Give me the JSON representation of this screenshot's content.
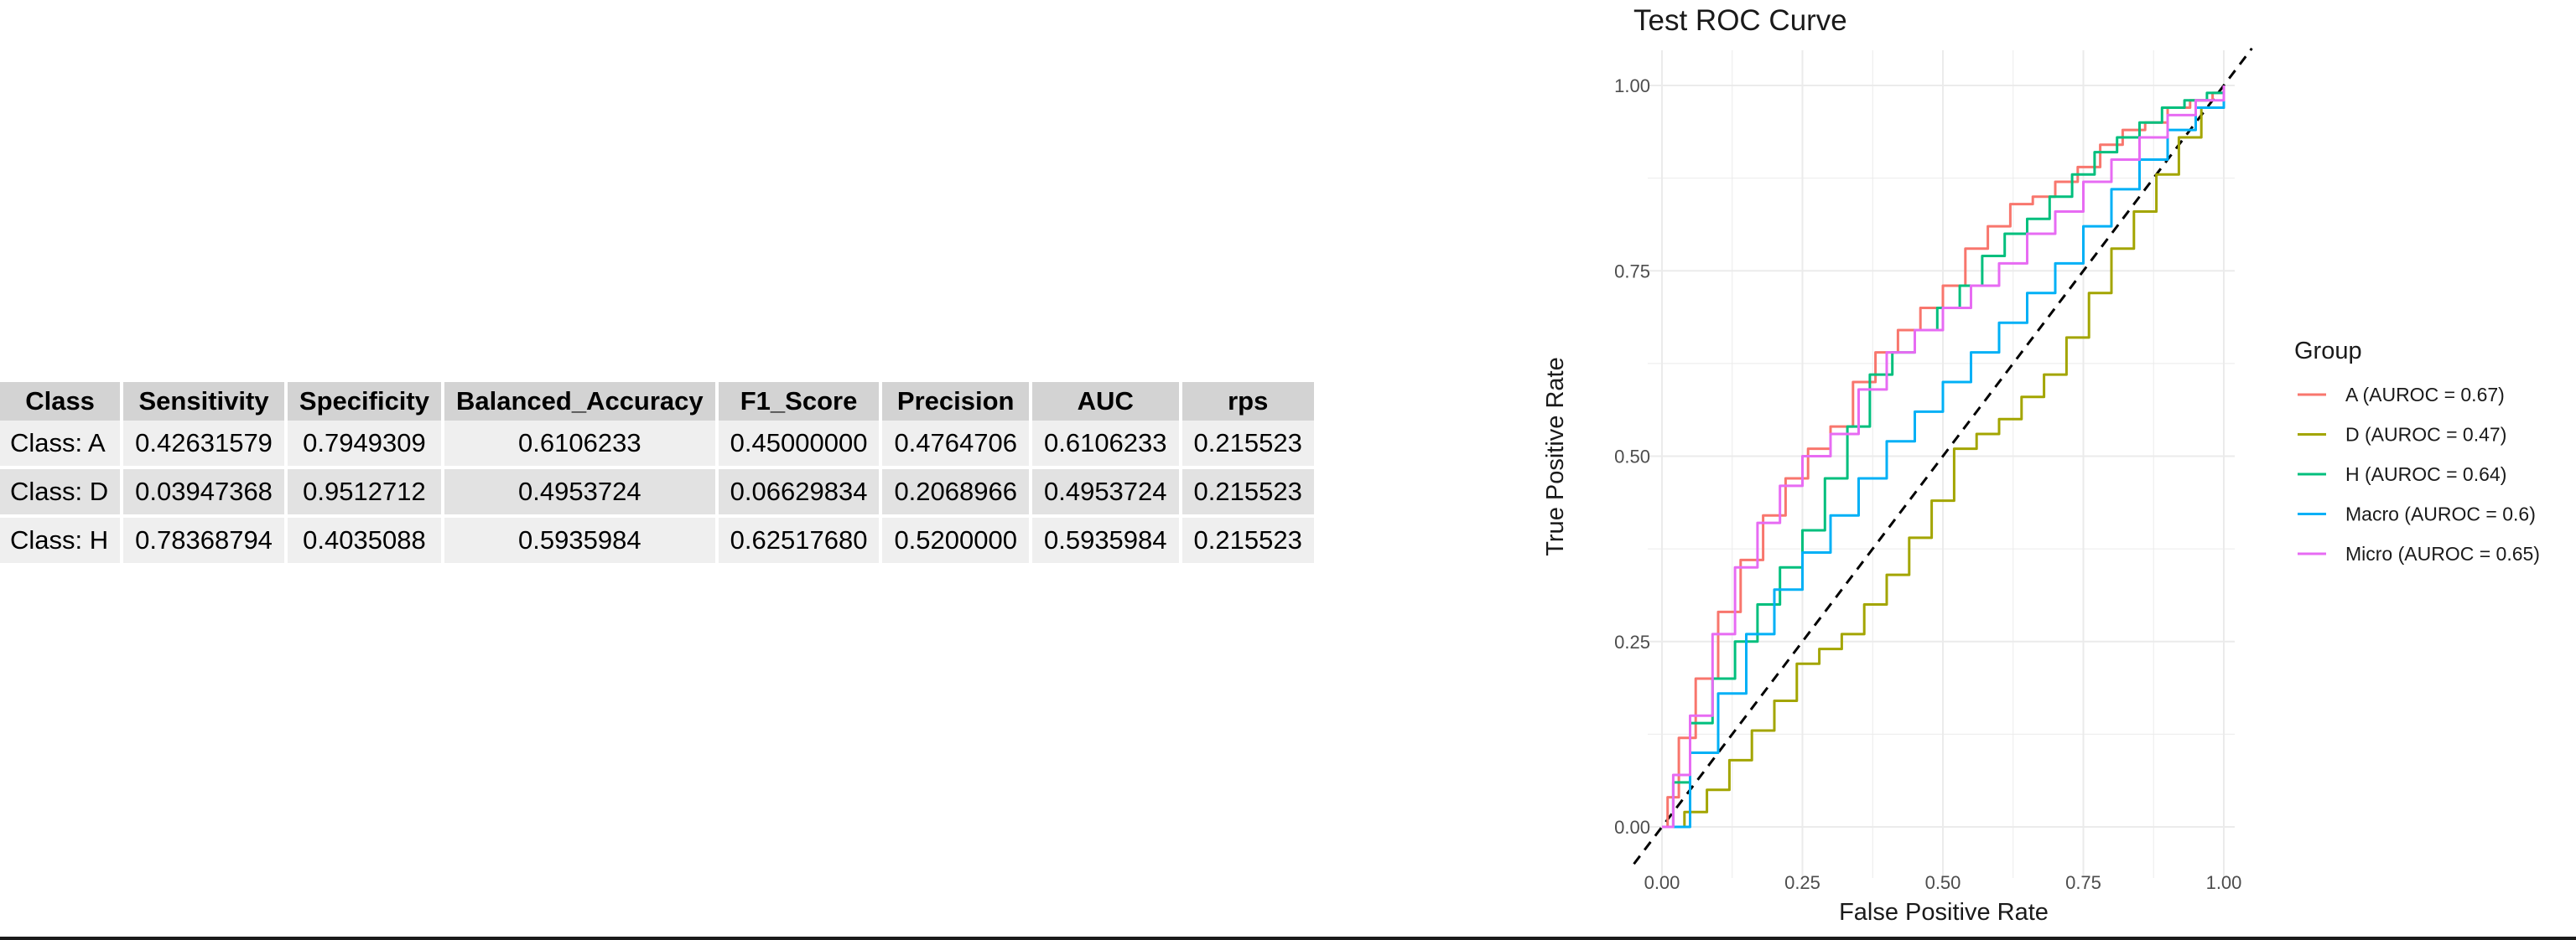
{
  "table": {
    "headers": [
      "Class",
      "Sensitivity",
      "Specificity",
      "Balanced_Accuracy",
      "F1_Score",
      "Precision",
      "AUC",
      "rps"
    ],
    "rows": [
      [
        "Class: A",
        "0.42631579",
        "0.7949309",
        "0.6106233",
        "0.45000000",
        "0.4764706",
        "0.6106233",
        "0.215523"
      ],
      [
        "Class: D",
        "0.03947368",
        "0.9512712",
        "0.4953724",
        "0.06629834",
        "0.2068966",
        "0.4953724",
        "0.215523"
      ],
      [
        "Class: H",
        "0.78368794",
        "0.4035088",
        "0.5935984",
        "0.62517680",
        "0.5200000",
        "0.5935984",
        "0.215523"
      ]
    ]
  },
  "chart_data": {
    "type": "line",
    "title": "Test ROC Curve",
    "xlabel": "False Positive Rate",
    "ylabel": "True Positive Rate",
    "xlim": [
      0,
      1
    ],
    "ylim": [
      0,
      1
    ],
    "x_ticks": [
      "0.00",
      "0.25",
      "0.50",
      "0.75",
      "1.00"
    ],
    "y_ticks": [
      "0.00",
      "0.25",
      "0.50",
      "0.75",
      "1.00"
    ],
    "grid": true,
    "legend_title": "Group",
    "legend_position": "right",
    "reference_line": {
      "style": "dashed",
      "color": "#000000",
      "points": [
        [
          0,
          0
        ],
        [
          1,
          1
        ]
      ]
    },
    "series": [
      {
        "name": "A (AUROC = 0.67)",
        "color": "#F8766D",
        "points": [
          [
            0,
            0
          ],
          [
            0.01,
            0.04
          ],
          [
            0.03,
            0.12
          ],
          [
            0.06,
            0.2
          ],
          [
            0.1,
            0.29
          ],
          [
            0.14,
            0.36
          ],
          [
            0.18,
            0.42
          ],
          [
            0.22,
            0.47
          ],
          [
            0.26,
            0.51
          ],
          [
            0.3,
            0.54
          ],
          [
            0.34,
            0.6
          ],
          [
            0.38,
            0.64
          ],
          [
            0.42,
            0.67
          ],
          [
            0.46,
            0.7
          ],
          [
            0.5,
            0.73
          ],
          [
            0.54,
            0.78
          ],
          [
            0.58,
            0.81
          ],
          [
            0.62,
            0.84
          ],
          [
            0.66,
            0.85
          ],
          [
            0.7,
            0.87
          ],
          [
            0.74,
            0.89
          ],
          [
            0.78,
            0.92
          ],
          [
            0.82,
            0.94
          ],
          [
            0.86,
            0.95
          ],
          [
            0.9,
            0.97
          ],
          [
            0.94,
            0.98
          ],
          [
            0.98,
            0.99
          ],
          [
            1,
            1
          ]
        ]
      },
      {
        "name": "D (AUROC = 0.47)",
        "color": "#A3A500",
        "points": [
          [
            0,
            0
          ],
          [
            0.04,
            0.02
          ],
          [
            0.08,
            0.05
          ],
          [
            0.12,
            0.09
          ],
          [
            0.16,
            0.13
          ],
          [
            0.2,
            0.17
          ],
          [
            0.24,
            0.22
          ],
          [
            0.28,
            0.24
          ],
          [
            0.32,
            0.26
          ],
          [
            0.36,
            0.3
          ],
          [
            0.4,
            0.34
          ],
          [
            0.44,
            0.39
          ],
          [
            0.48,
            0.44
          ],
          [
            0.52,
            0.51
          ],
          [
            0.56,
            0.53
          ],
          [
            0.6,
            0.55
          ],
          [
            0.64,
            0.58
          ],
          [
            0.68,
            0.61
          ],
          [
            0.72,
            0.66
          ],
          [
            0.76,
            0.72
          ],
          [
            0.8,
            0.78
          ],
          [
            0.84,
            0.83
          ],
          [
            0.88,
            0.88
          ],
          [
            0.92,
            0.93
          ],
          [
            0.96,
            0.97
          ],
          [
            1,
            1
          ]
        ]
      },
      {
        "name": "H (AUROC = 0.64)",
        "color": "#00BF7D",
        "points": [
          [
            0,
            0
          ],
          [
            0.02,
            0.06
          ],
          [
            0.05,
            0.14
          ],
          [
            0.09,
            0.2
          ],
          [
            0.13,
            0.25
          ],
          [
            0.17,
            0.3
          ],
          [
            0.21,
            0.35
          ],
          [
            0.25,
            0.4
          ],
          [
            0.29,
            0.47
          ],
          [
            0.33,
            0.54
          ],
          [
            0.37,
            0.61
          ],
          [
            0.41,
            0.64
          ],
          [
            0.45,
            0.67
          ],
          [
            0.49,
            0.7
          ],
          [
            0.53,
            0.73
          ],
          [
            0.57,
            0.77
          ],
          [
            0.61,
            0.8
          ],
          [
            0.65,
            0.82
          ],
          [
            0.69,
            0.85
          ],
          [
            0.73,
            0.88
          ],
          [
            0.77,
            0.91
          ],
          [
            0.81,
            0.93
          ],
          [
            0.85,
            0.95
          ],
          [
            0.89,
            0.97
          ],
          [
            0.93,
            0.98
          ],
          [
            0.97,
            0.99
          ],
          [
            1,
            1
          ]
        ]
      },
      {
        "name": "Macro (AUROC = 0.6)",
        "color": "#00B0F6",
        "points": [
          [
            0,
            0
          ],
          [
            0.05,
            0.1
          ],
          [
            0.1,
            0.18
          ],
          [
            0.15,
            0.26
          ],
          [
            0.2,
            0.32
          ],
          [
            0.25,
            0.37
          ],
          [
            0.3,
            0.42
          ],
          [
            0.35,
            0.47
          ],
          [
            0.4,
            0.52
          ],
          [
            0.45,
            0.56
          ],
          [
            0.5,
            0.6
          ],
          [
            0.55,
            0.64
          ],
          [
            0.6,
            0.68
          ],
          [
            0.65,
            0.72
          ],
          [
            0.7,
            0.76
          ],
          [
            0.75,
            0.81
          ],
          [
            0.8,
            0.86
          ],
          [
            0.85,
            0.9
          ],
          [
            0.9,
            0.94
          ],
          [
            0.95,
            0.97
          ],
          [
            1,
            1
          ]
        ]
      },
      {
        "name": "Micro (AUROC = 0.65)",
        "color": "#E76BF3",
        "points": [
          [
            0,
            0
          ],
          [
            0.02,
            0.07
          ],
          [
            0.05,
            0.15
          ],
          [
            0.09,
            0.26
          ],
          [
            0.13,
            0.35
          ],
          [
            0.17,
            0.41
          ],
          [
            0.21,
            0.46
          ],
          [
            0.25,
            0.5
          ],
          [
            0.3,
            0.53
          ],
          [
            0.35,
            0.59
          ],
          [
            0.4,
            0.64
          ],
          [
            0.45,
            0.67
          ],
          [
            0.5,
            0.7
          ],
          [
            0.55,
            0.73
          ],
          [
            0.6,
            0.76
          ],
          [
            0.65,
            0.8
          ],
          [
            0.7,
            0.83
          ],
          [
            0.75,
            0.87
          ],
          [
            0.8,
            0.9
          ],
          [
            0.85,
            0.93
          ],
          [
            0.9,
            0.96
          ],
          [
            0.95,
            0.98
          ],
          [
            1,
            1
          ]
        ]
      }
    ]
  }
}
